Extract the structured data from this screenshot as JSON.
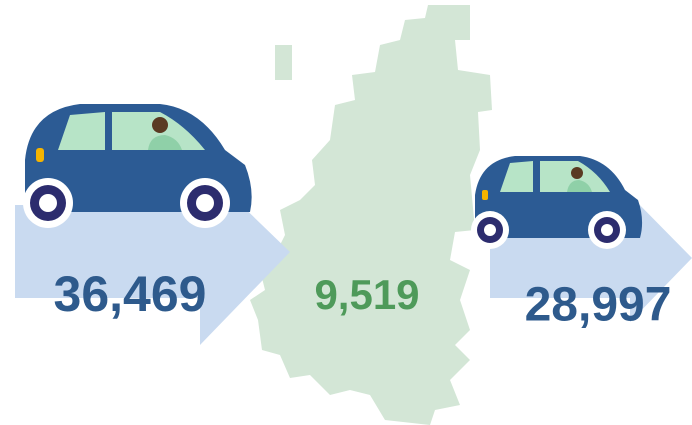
{
  "flows": {
    "inflow": "36,469",
    "internal": "9,519",
    "outflow": "28,997"
  }
}
